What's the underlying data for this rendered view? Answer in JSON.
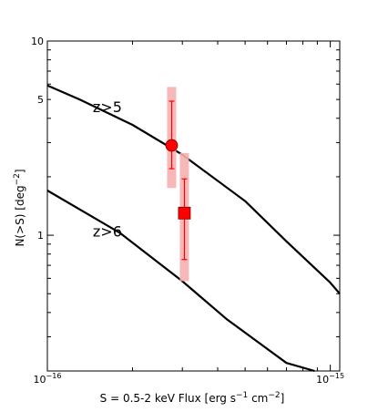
{
  "chart_data": {
    "type": "line",
    "xlabel": "S = 0.5-2 keV Flux [erg s",
    "xlabel_sup1": "−1",
    "xlabel_mid": " cm",
    "xlabel_sup2": "−2",
    "xlabel_end": "]",
    "ylabel": "N(>S) [deg",
    "ylabel_sup": "−2",
    "ylabel_end": "]",
    "x_scale": "log",
    "y_scale": "log",
    "xlim": [
      1e-16,
      1.08e-15
    ],
    "ylim": [
      0.2,
      10
    ],
    "x_ticks": [
      {
        "value": 1e-16,
        "base": "10",
        "exp": "−16"
      },
      {
        "value": 1e-15,
        "base": "10",
        "exp": "−15"
      }
    ],
    "y_ticks": [
      {
        "value": 10,
        "label": "10"
      },
      {
        "value": 5,
        "label": "5"
      },
      {
        "value": 1,
        "label": "1"
      }
    ],
    "series": [
      {
        "label": "z>5",
        "color": "#000000",
        "x": [
          1e-16,
          1.3e-16,
          2e-16,
          3e-16,
          5e-16,
          7e-16,
          1e-15,
          1.08e-15
        ],
        "y": [
          5.9,
          5.0,
          3.7,
          2.6,
          1.5,
          0.93,
          0.57,
          0.5
        ]
      },
      {
        "label": "z>6",
        "color": "#000000",
        "x": [
          1e-16,
          1.8e-16,
          3e-16,
          4.3e-16,
          7e-16,
          8.8e-16
        ],
        "y": [
          1.7,
          1.03,
          0.58,
          0.37,
          0.22,
          0.2
        ]
      }
    ],
    "points": [
      {
        "label": "z>5",
        "marker": "circle",
        "color": "#ff0000",
        "x": 2.75e-16,
        "y": 2.9,
        "err_low": 2.2,
        "err_high": 4.9,
        "band_low": 1.75,
        "band_high": 5.8
      },
      {
        "label": "z>6",
        "marker": "square",
        "color": "#ff0000",
        "x": 3.05e-16,
        "y": 1.3,
        "err_low": 0.75,
        "err_high": 1.95,
        "band_low": 0.58,
        "band_high": 2.65
      }
    ],
    "band_color": "#f5b0b0",
    "annotations": [
      {
        "text": "z>5",
        "x": 1.63e-16,
        "y": 4.6
      },
      {
        "text": "z>6",
        "x": 1.63e-16,
        "y": 1.05
      }
    ]
  }
}
